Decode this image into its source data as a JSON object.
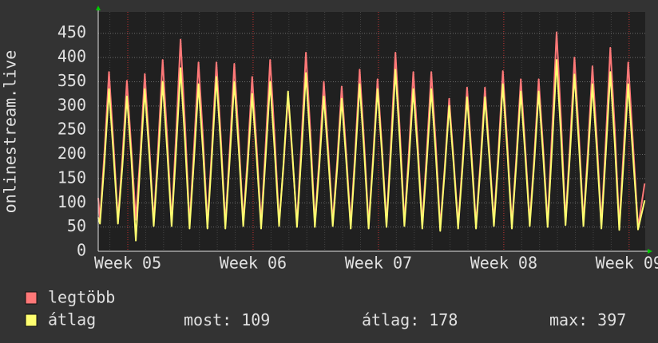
{
  "chart_data": {
    "type": "line",
    "ylabel": "onlinestream.live",
    "xlim": [
      -1.65,
      28.9
    ],
    "xticks": [
      {
        "value": 0,
        "label": "Week 05"
      },
      {
        "value": 7,
        "label": "Week 06"
      },
      {
        "value": 14,
        "label": "Week 07"
      },
      {
        "value": 21,
        "label": "Week 08"
      },
      {
        "value": 28,
        "label": "Week 09"
      }
    ],
    "ylim": [
      0,
      494
    ],
    "yticks": [
      0,
      50,
      100,
      150,
      200,
      250,
      300,
      350,
      400,
      450
    ],
    "grid": true,
    "x": [
      -1.65,
      -1.55,
      -1.3,
      -1.05,
      -0.8,
      -0.55,
      -0.3,
      -0.05,
      0.2,
      0.45,
      0.7,
      0.95,
      1.2,
      1.45,
      1.7,
      1.95,
      2.2,
      2.45,
      2.7,
      2.95,
      3.2,
      3.45,
      3.7,
      3.95,
      4.2,
      4.45,
      4.7,
      4.95,
      5.2,
      5.45,
      5.7,
      5.95,
      6.2,
      6.45,
      6.7,
      6.95,
      7.2,
      7.45,
      7.7,
      7.95,
      8.2,
      8.45,
      8.7,
      8.95,
      9.2,
      9.45,
      9.7,
      9.95,
      10.2,
      10.45,
      10.7,
      10.95,
      11.2,
      11.45,
      11.7,
      11.95,
      12.2,
      12.45,
      12.7,
      12.95,
      13.2,
      13.45,
      13.7,
      13.95,
      14.2,
      14.45,
      14.7,
      14.95,
      15.2,
      15.45,
      15.7,
      15.95,
      16.2,
      16.45,
      16.7,
      16.95,
      17.2,
      17.45,
      17.7,
      17.95,
      18.2,
      18.45,
      18.7,
      18.95,
      19.2,
      19.45,
      19.7,
      19.95,
      20.2,
      20.45,
      20.7,
      20.95,
      21.2,
      21.45,
      21.7,
      21.95,
      22.2,
      22.45,
      22.7,
      22.95,
      23.2,
      23.45,
      23.7,
      23.95,
      24.2,
      24.45,
      24.7,
      24.95,
      25.2,
      25.45,
      25.7,
      25.95,
      26.2,
      26.45,
      26.7,
      26.95,
      27.2,
      27.45,
      27.7,
      27.95,
      28.2,
      28.5,
      28.87
    ],
    "series": [
      {
        "name": "legtöbb",
        "color": "#ff7878",
        "values": [
          110,
          65,
          204,
          370,
          222,
          65,
          194,
          352,
          211,
          65,
          201,
          366,
          220,
          60,
          217,
          395,
          237,
          60,
          240,
          437,
          262,
          55,
          215,
          390,
          234,
          55,
          215,
          390,
          234,
          55,
          213,
          387,
          232,
          60,
          198,
          360,
          216,
          55,
          217,
          395,
          237,
          60,
          176,
          320,
          192,
          58,
          226,
          410,
          246,
          58,
          193,
          350,
          210,
          60,
          187,
          340,
          204,
          55,
          206,
          375,
          225,
          55,
          195,
          355,
          213,
          58,
          226,
          410,
          246,
          60,
          204,
          370,
          222,
          55,
          204,
          370,
          222,
          50,
          173,
          315,
          189,
          55,
          186,
          338,
          203,
          55,
          186,
          338,
          203,
          60,
          205,
          372,
          223,
          55,
          195,
          355,
          213,
          60,
          195,
          355,
          213,
          58,
          249,
          452,
          271,
          62,
          220,
          400,
          240,
          60,
          210,
          382,
          229,
          55,
          231,
          420,
          252,
          52,
          215,
          390,
          234,
          50,
          140
        ]
      },
      {
        "name": "átlag",
        "color": "#ffff70",
        "values": [
          70,
          57,
          184,
          335,
          201,
          57,
          176,
          320,
          192,
          22,
          184,
          335,
          201,
          52,
          193,
          350,
          210,
          52,
          208,
          378,
          227,
          47,
          190,
          345,
          207,
          47,
          198,
          360,
          216,
          47,
          193,
          350,
          210,
          52,
          179,
          325,
          195,
          47,
          193,
          350,
          210,
          52,
          182,
          330,
          198,
          50,
          202,
          368,
          221,
          50,
          176,
          320,
          192,
          52,
          173,
          315,
          189,
          47,
          190,
          345,
          207,
          47,
          184,
          335,
          201,
          50,
          206,
          375,
          225,
          52,
          184,
          335,
          201,
          47,
          184,
          335,
          201,
          42,
          165,
          300,
          180,
          47,
          175,
          318,
          191,
          47,
          175,
          318,
          191,
          52,
          190,
          345,
          207,
          47,
          182,
          330,
          198,
          52,
          182,
          330,
          198,
          50,
          217,
          395,
          237,
          54,
          201,
          365,
          219,
          52,
          190,
          345,
          207,
          47,
          204,
          370,
          222,
          44,
          190,
          345,
          207,
          45,
          105
        ]
      }
    ],
    "stats": [
      {
        "label": "most:",
        "value": 109
      },
      {
        "label": "átlag:",
        "value": 178
      },
      {
        "label": "max:",
        "value": 397
      }
    ]
  }
}
